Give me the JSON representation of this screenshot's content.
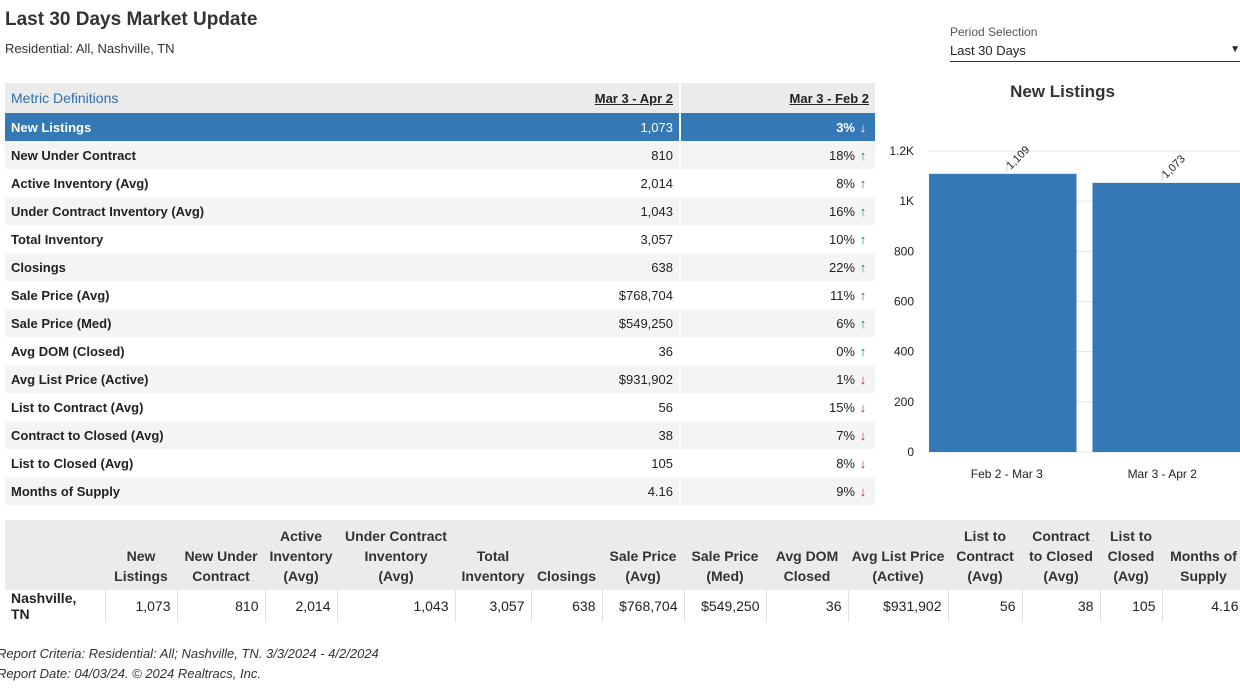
{
  "page": {
    "title": "Last 30 Days Market Update",
    "subtitle": "Residential: All, Nashville, TN"
  },
  "period": {
    "label": "Period Selection",
    "value": "Last 30 Days"
  },
  "metrics_table": {
    "header": {
      "definitions_link": "Metric Definitions",
      "col_current": "Mar 3 - Apr 2",
      "col_change": "Mar 3 - Feb 2"
    },
    "rows": [
      {
        "label": "New Listings",
        "value": "1,073",
        "change": "3%",
        "dir": "down",
        "selected": true
      },
      {
        "label": "New Under Contract",
        "value": "810",
        "change": "18%",
        "dir": "up"
      },
      {
        "label": "Active Inventory (Avg)",
        "value": "2,014",
        "change": "8%",
        "dir": "up"
      },
      {
        "label": "Under Contract Inventory (Avg)",
        "value": "1,043",
        "change": "16%",
        "dir": "up"
      },
      {
        "label": "Total Inventory",
        "value": "3,057",
        "change": "10%",
        "dir": "up"
      },
      {
        "label": "Closings",
        "value": "638",
        "change": "22%",
        "dir": "up"
      },
      {
        "label": "Sale Price (Avg)",
        "value": "$768,704",
        "change": "11%",
        "dir": "up"
      },
      {
        "label": "Sale Price (Med)",
        "value": "$549,250",
        "change": "6%",
        "dir": "up"
      },
      {
        "label": "Avg DOM (Closed)",
        "value": "36",
        "change": "0%",
        "dir": "up"
      },
      {
        "label": "Avg List Price (Active)",
        "value": "$931,902",
        "change": "1%",
        "dir": "down"
      },
      {
        "label": "List to Contract (Avg)",
        "value": "56",
        "change": "15%",
        "dir": "down"
      },
      {
        "label": "Contract to Closed (Avg)",
        "value": "38",
        "change": "7%",
        "dir": "down"
      },
      {
        "label": "List to Closed (Avg)",
        "value": "105",
        "change": "8%",
        "dir": "down"
      },
      {
        "label": "Months of Supply",
        "value": "4.16",
        "change": "9%",
        "dir": "down"
      }
    ],
    "colors": {
      "selected_bg": "#3478b5",
      "up": "#1b8a3a",
      "down": "#c0262e"
    },
    "icons": {
      "up": "arrow-up-icon",
      "down": "arrow-down-icon"
    }
  },
  "chart_data": {
    "type": "bar",
    "title": "New Listings",
    "categories": [
      "Feb 2 - Mar 3",
      "Mar 3 - Apr 2"
    ],
    "values": [
      1109,
      1073
    ],
    "data_labels": [
      "1,109",
      "1,073"
    ],
    "y_ticks": [
      0,
      200,
      400,
      600,
      800,
      1000,
      1200
    ],
    "y_tick_labels": [
      "0",
      "200",
      "400",
      "600",
      "800",
      "1K",
      "1.2K"
    ],
    "ylim": [
      0,
      1200
    ],
    "color": "#3478b5",
    "grid": true,
    "legend": "none"
  },
  "summary_table": {
    "headers": [
      "",
      "New Listings",
      "New Under Contract",
      "Active Inventory (Avg)",
      "Under Contract Inventory (Avg)",
      "Total Inventory",
      "Closings",
      "Sale Price (Avg)",
      "Sale Price (Med)",
      "Avg DOM Closed",
      "Avg List Price (Active)",
      "List to Contract (Avg)",
      "Contract to Closed (Avg)",
      "List to Closed (Avg)",
      "Months of Supply"
    ],
    "header_lines": [
      [
        ""
      ],
      [
        "New",
        "Listings"
      ],
      [
        "New Under",
        "Contract"
      ],
      [
        "Active",
        "Inventory",
        "(Avg)"
      ],
      [
        "Under Contract",
        "Inventory",
        "(Avg)"
      ],
      [
        "Total",
        "Inventory"
      ],
      [
        "Closings"
      ],
      [
        "Sale Price",
        "(Avg)"
      ],
      [
        "Sale Price",
        "(Med)"
      ],
      [
        "Avg DOM",
        "Closed"
      ],
      [
        "Avg List Price",
        "(Active)"
      ],
      [
        "List to",
        "Contract",
        "(Avg)"
      ],
      [
        "Contract",
        "to Closed",
        "(Avg)"
      ],
      [
        "List to",
        "Closed",
        "(Avg)"
      ],
      [
        "Months of",
        "Supply"
      ]
    ],
    "row": [
      "Nashville, TN",
      "1,073",
      "810",
      "2,014",
      "1,043",
      "3,057",
      "638",
      "$768,704",
      "$549,250",
      "36",
      "$931,902",
      "56",
      "38",
      "105",
      "4.16"
    ]
  },
  "footer": {
    "criteria": "Report Criteria: Residential: All; Nashville, TN. 3/3/2024 - 4/2/2024",
    "date": "Report Date: 04/03/24. © 2024 Realtracs, Inc."
  }
}
